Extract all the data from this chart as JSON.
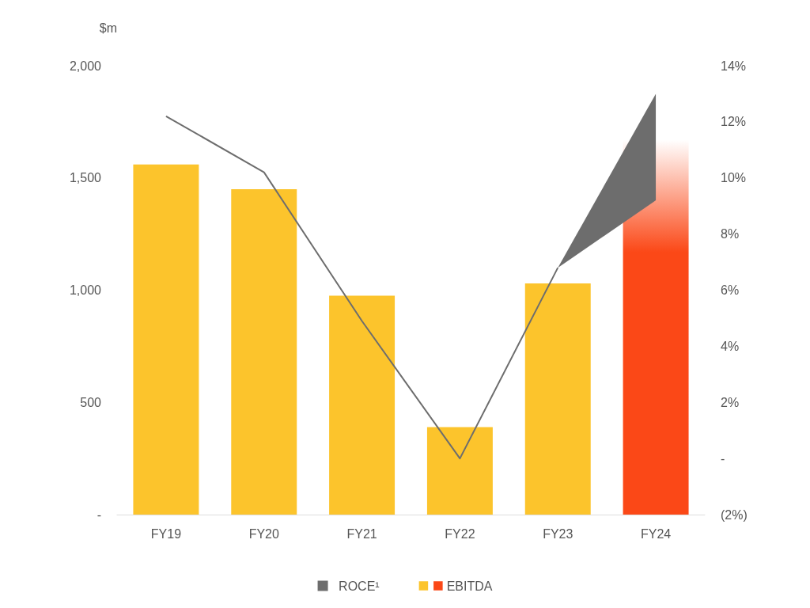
{
  "chart_data": {
    "type": "bar",
    "ylabel": "$m",
    "categories": [
      "FY19",
      "FY20",
      "FY21",
      "FY22",
      "FY23",
      "FY24"
    ],
    "series": [
      {
        "name": "ROCE¹",
        "type": "line",
        "axis": "y2",
        "color": "#6d6d6d",
        "values": [
          12.2,
          10.2,
          4.9,
          0.0,
          6.8,
          null
        ],
        "lower": [
          null,
          null,
          null,
          null,
          6.8,
          9.2
        ],
        "upper": [
          null,
          null,
          null,
          null,
          6.8,
          13.0
        ]
      },
      {
        "name": "EBITDA",
        "colors": [
          "#fcc42c",
          "#fcc42c",
          "#fcc42c",
          "#fcc42c",
          "#fcc42c",
          "#fb4817"
        ],
        "values": [
          1560,
          1450,
          975,
          390,
          1030,
          1670
        ]
      }
    ],
    "ylim": [
      0,
      2000
    ],
    "yticks": [
      {
        "value": 0,
        "label": "-"
      },
      500,
      {
        "value": 1000,
        "label": "1,000"
      },
      {
        "value": 1500,
        "label": "1,500"
      },
      {
        "value": 2000,
        "label": "2,000"
      }
    ],
    "y2lim": [
      -2,
      14
    ],
    "y2ticks": [
      {
        "value": -2,
        "label": "(2%)"
      },
      {
        "value": 0,
        "label": "-"
      },
      {
        "value": 2,
        "label": "2%"
      },
      {
        "value": 4,
        "label": "4%"
      },
      {
        "value": 6,
        "label": "6%"
      },
      {
        "value": 8,
        "label": "8%"
      },
      {
        "value": 10,
        "label": "10%"
      },
      {
        "value": 12,
        "label": "12%"
      },
      {
        "value": 14,
        "label": "14%"
      }
    ],
    "legend": "bottom",
    "marker": "none"
  }
}
